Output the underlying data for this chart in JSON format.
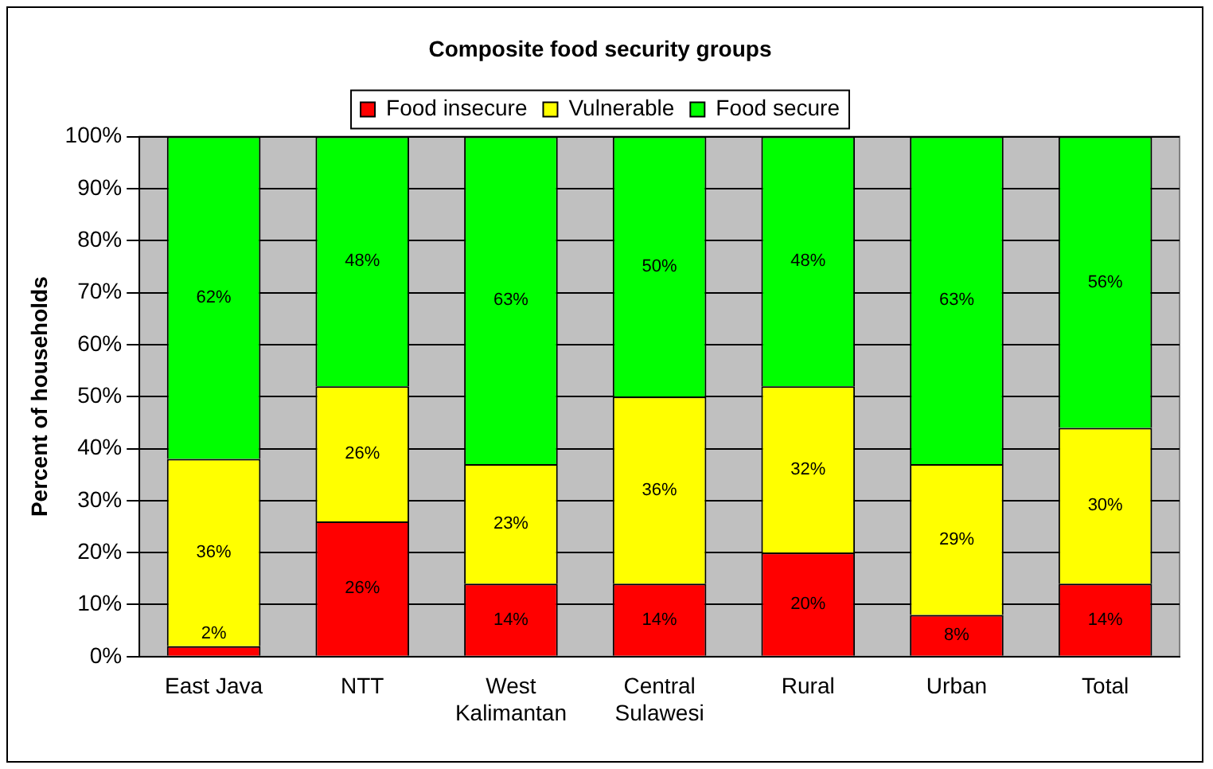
{
  "chart_data": {
    "type": "bar",
    "title": "Composite food security groups",
    "ylabel": "Percent of households",
    "stacked": true,
    "legend": "top",
    "grid": "y",
    "categories": [
      "East Java",
      "NTT",
      "West Kalimantan",
      "Central Sulawesi",
      "Rural",
      "Urban",
      "Total"
    ],
    "series": [
      {
        "name": "Food insecure",
        "color": "#ff0000",
        "values": [
          2,
          26,
          14,
          14,
          20,
          8,
          14
        ],
        "value_labels": [
          "2%",
          "26%",
          "14%",
          "14%",
          "20%",
          "8%",
          "14%"
        ]
      },
      {
        "name": "Vulnerable",
        "color": "#ffff00",
        "values": [
          36,
          26,
          23,
          36,
          32,
          29,
          30
        ],
        "value_labels": [
          "36%",
          "26%",
          "23%",
          "36%",
          "32%",
          "29%",
          "30%"
        ]
      },
      {
        "name": "Food secure",
        "color": "#00ff00",
        "values": [
          62,
          48,
          63,
          50,
          48,
          63,
          56
        ],
        "value_labels": [
          "62%",
          "48%",
          "63%",
          "50%",
          "48%",
          "63%",
          "56%"
        ]
      }
    ],
    "ylim": [
      0,
      100
    ],
    "yticks": [
      {
        "value": 0,
        "label": "0%"
      },
      {
        "value": 10,
        "label": "10%"
      },
      {
        "value": 20,
        "label": "20%"
      },
      {
        "value": 30,
        "label": "30%"
      },
      {
        "value": 40,
        "label": "40%"
      },
      {
        "value": 50,
        "label": "50%"
      },
      {
        "value": 60,
        "label": "60%"
      },
      {
        "value": 70,
        "label": "70%"
      },
      {
        "value": 80,
        "label": "80%"
      },
      {
        "value": 90,
        "label": "90%"
      },
      {
        "value": 100,
        "label": "100%"
      }
    ]
  }
}
